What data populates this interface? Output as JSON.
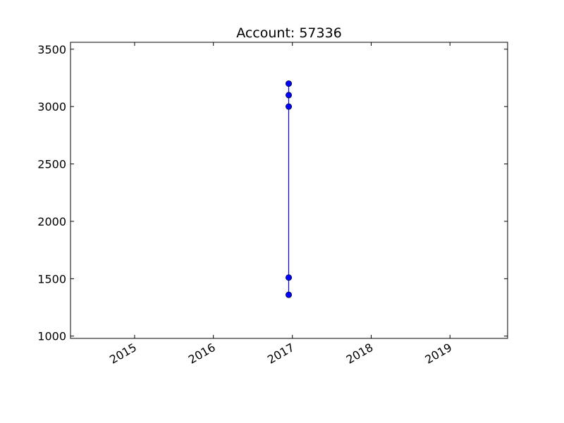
{
  "chart_data": {
    "type": "line",
    "title": "Account: 57336",
    "xlabel": "",
    "ylabel": "",
    "x_axis_type": "date",
    "xlim": [
      "2014-03-10",
      "2019-09-25"
    ],
    "ylim": [
      980,
      3560
    ],
    "x_ticks": [
      {
        "value": "2015-01-01",
        "label": "2015"
      },
      {
        "value": "2016-01-01",
        "label": "2016"
      },
      {
        "value": "2017-01-01",
        "label": "2017"
      },
      {
        "value": "2018-01-01",
        "label": "2018"
      },
      {
        "value": "2019-01-01",
        "label": "2019"
      }
    ],
    "y_ticks": [
      1000,
      1500,
      2000,
      2500,
      3000,
      3500
    ],
    "grid": false,
    "legend": "none",
    "series": [
      {
        "color": "#0000ff",
        "marker": "circle",
        "x": [
          "2016-12-15",
          "2016-12-15",
          "2016-12-15",
          "2016-12-15",
          "2016-12-15"
        ],
        "y": [
          3200,
          3100,
          3000,
          1510,
          1360
        ]
      }
    ]
  }
}
